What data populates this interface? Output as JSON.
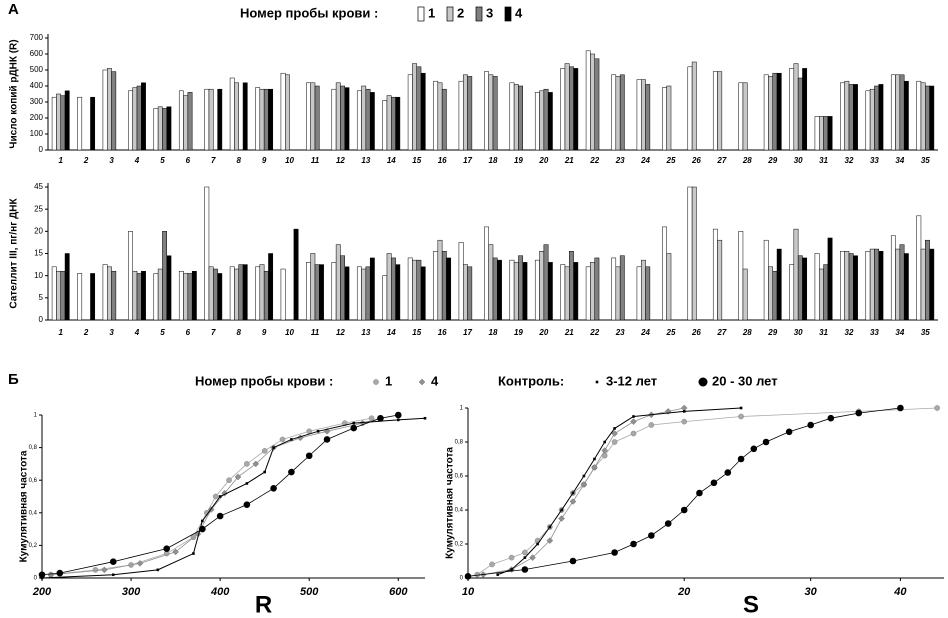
{
  "panels": [
    "А",
    "Б"
  ],
  "chart_data": [
    {
      "type": "bar",
      "legend_title": "Номер пробы крови :",
      "ylabel": "Число копий рДНК (R)",
      "categories": [
        "1",
        "2",
        "3",
        "4",
        "5",
        "6",
        "7",
        "8",
        "9",
        "10",
        "11",
        "12",
        "13",
        "14",
        "15",
        "16",
        "17",
        "18",
        "19",
        "20",
        "21",
        "22",
        "23",
        "24",
        "25",
        "26",
        "27",
        "28",
        "29",
        "30",
        "31",
        "32",
        "33",
        "34",
        "35"
      ],
      "ylim": [
        0,
        700
      ],
      "yticks": [
        0,
        100,
        200,
        300,
        400,
        500,
        600,
        700
      ],
      "series": [
        {
          "name": "1",
          "color": "#ffffff",
          "values": [
            330,
            330,
            500,
            370,
            260,
            370,
            380,
            450,
            390,
            480,
            420,
            380,
            370,
            310,
            470,
            430,
            430,
            490,
            420,
            360,
            510,
            620,
            470,
            440,
            390,
            520,
            490,
            420,
            470,
            510,
            210,
            420,
            370,
            470,
            430
          ]
        },
        {
          "name": "2",
          "color": "#c8c8c8",
          "values": [
            350,
            null,
            510,
            390,
            270,
            340,
            380,
            420,
            380,
            470,
            420,
            420,
            400,
            340,
            540,
            420,
            470,
            470,
            410,
            370,
            540,
            600,
            460,
            440,
            400,
            550,
            490,
            420,
            460,
            540,
            210,
            430,
            380,
            470,
            420
          ]
        },
        {
          "name": "3",
          "color": "#808080",
          "values": [
            340,
            null,
            490,
            400,
            260,
            360,
            null,
            null,
            380,
            null,
            400,
            400,
            380,
            330,
            520,
            380,
            460,
            460,
            400,
            380,
            520,
            570,
            470,
            410,
            null,
            null,
            null,
            null,
            480,
            450,
            210,
            410,
            400,
            470,
            400
          ]
        },
        {
          "name": "4",
          "color": "#000000",
          "values": [
            370,
            330,
            null,
            420,
            270,
            null,
            380,
            420,
            380,
            null,
            null,
            390,
            360,
            330,
            480,
            null,
            null,
            null,
            null,
            360,
            510,
            null,
            null,
            null,
            null,
            null,
            null,
            null,
            480,
            510,
            210,
            410,
            410,
            430,
            400
          ]
        }
      ]
    },
    {
      "type": "bar",
      "ylabel": "Сателлит III, пг/нг ДНК",
      "categories": [
        "1",
        "2",
        "3",
        "4",
        "5",
        "6",
        "7",
        "8",
        "9",
        "10",
        "11",
        "12",
        "13",
        "14",
        "15",
        "16",
        "17",
        "18",
        "19",
        "20",
        "21",
        "22",
        "23",
        "24",
        "25",
        "26",
        "27",
        "28",
        "29",
        "30",
        "31",
        "32",
        "33",
        "34",
        "35"
      ],
      "ylim": [
        0,
        45
      ],
      "yticks": [
        0,
        5,
        10,
        15,
        20,
        25,
        45
      ],
      "series": [
        {
          "color": "#ffffff",
          "values": [
            12,
            10.5,
            12.5,
            20,
            10.5,
            11,
            45,
            12,
            12,
            11.5,
            13,
            13,
            12,
            10,
            14,
            15.5,
            17.5,
            21,
            13.5,
            13.5,
            12.5,
            12,
            14,
            12,
            21,
            45,
            20.5,
            20,
            18,
            12.5,
            15,
            15.5,
            15.5,
            19,
            23.5
          ]
        },
        {
          "color": "#c8c8c8",
          "values": [
            11,
            null,
            12,
            11,
            11.5,
            10.5,
            12,
            11.5,
            12.5,
            null,
            15,
            17,
            11.5,
            15,
            13.5,
            18,
            12.5,
            17,
            13,
            15.5,
            12,
            13,
            12,
            13.5,
            15,
            45,
            18,
            11.5,
            12,
            20.5,
            11.5,
            15.5,
            16,
            16,
            16
          ]
        },
        {
          "color": "#808080",
          "values": [
            11,
            null,
            11,
            10.5,
            20,
            10.5,
            11.5,
            12.5,
            11,
            null,
            12.5,
            14.5,
            12,
            14,
            13.5,
            15.5,
            12,
            14,
            14.5,
            17,
            15.5,
            14,
            14.5,
            12,
            null,
            null,
            null,
            null,
            11,
            14.5,
            12.5,
            15,
            16,
            17,
            18
          ]
        },
        {
          "color": "#000000",
          "values": [
            15,
            10.5,
            null,
            11,
            14.5,
            11,
            10.5,
            12.5,
            15,
            20.5,
            12.5,
            12,
            14,
            12.5,
            12,
            14,
            null,
            13.5,
            13,
            13,
            13,
            null,
            null,
            null,
            null,
            null,
            null,
            null,
            16,
            14,
            18.5,
            14.5,
            15.5,
            15,
            16
          ]
        }
      ]
    },
    {
      "type": "line",
      "legend_title": "Номер пробы крови :",
      "legend_title2": "Контроль:",
      "xlabel": "R",
      "ylabel": "Кумулятивная частота",
      "xlim": [
        200,
        630
      ],
      "xticks": [
        200,
        300,
        400,
        500,
        600
      ],
      "ylim": [
        0,
        1
      ],
      "yticks": [
        0,
        {
          "value": 0.2,
          "label": "0,2"
        },
        {
          "value": 0.4,
          "label": "0,4"
        },
        {
          "value": 0.6,
          "label": "0,6"
        },
        {
          "value": 0.8,
          "label": "0,8"
        },
        1
      ],
      "series": [
        {
          "name": "1",
          "color": "#a8a8a8",
          "marker": "circle",
          "x": [
            210,
            260,
            300,
            340,
            370,
            385,
            395,
            410,
            430,
            450,
            470,
            500,
            540,
            570
          ],
          "values": [
            0.02,
            0.05,
            0.08,
            0.15,
            0.25,
            0.4,
            0.5,
            0.6,
            0.7,
            0.78,
            0.85,
            0.9,
            0.95,
            0.98
          ]
        },
        {
          "name": "4",
          "color": "#909090",
          "marker": "diamond",
          "x": [
            210,
            270,
            310,
            350,
            375,
            390,
            405,
            420,
            440,
            460,
            490,
            520,
            560,
            580
          ],
          "values": [
            0.02,
            0.05,
            0.09,
            0.16,
            0.27,
            0.42,
            0.52,
            0.62,
            0.7,
            0.8,
            0.86,
            0.9,
            0.95,
            0.98
          ]
        },
        {
          "name": "3-12 лет",
          "color": "#000000",
          "marker": "square",
          "x": [
            200,
            280,
            330,
            370,
            380,
            400,
            430,
            450,
            460,
            480,
            510,
            550,
            600,
            630
          ],
          "values": [
            0,
            0.02,
            0.05,
            0.15,
            0.35,
            0.5,
            0.58,
            0.65,
            0.8,
            0.85,
            0.9,
            0.95,
            0.97,
            0.98
          ]
        },
        {
          "name": "20 - 30 лет",
          "color": "#000000",
          "marker": "bigcircle",
          "x": [
            200,
            220,
            280,
            340,
            380,
            400,
            430,
            460,
            480,
            500,
            520,
            550,
            580,
            600
          ],
          "values": [
            0.02,
            0.03,
            0.1,
            0.18,
            0.3,
            0.38,
            0.45,
            0.55,
            0.65,
            0.75,
            0.85,
            0.92,
            0.98,
            1
          ]
        }
      ]
    },
    {
      "type": "line",
      "xlabel": "S",
      "ylabel": "Кумулятивная частота",
      "xscale": "log",
      "xlim": [
        10,
        46
      ],
      "xticks": [
        10,
        20,
        30,
        40
      ],
      "ylim": [
        0,
        1
      ],
      "yticks": [
        0,
        {
          "value": 0.2,
          "label": "0,2"
        },
        {
          "value": 0.4,
          "label": "0,4"
        },
        {
          "value": 0.6,
          "label": "0,6"
        },
        {
          "value": 0.8,
          "label": "0,8"
        },
        1
      ],
      "series": [
        {
          "color": "#a8a8a8",
          "marker": "circle",
          "x": [
            10.3,
            10.8,
            11.5,
            12,
            12.5,
            13,
            13.5,
            14,
            14.5,
            15,
            15.5,
            16,
            17,
            18,
            20,
            24,
            35,
            45
          ],
          "values": [
            0.02,
            0.08,
            0.12,
            0.15,
            0.22,
            0.3,
            0.4,
            0.5,
            0.55,
            0.65,
            0.72,
            0.8,
            0.85,
            0.9,
            0.92,
            0.95,
            0.98,
            1
          ]
        },
        {
          "color": "#909090",
          "marker": "diamond",
          "x": [
            10.5,
            11.5,
            12.3,
            13,
            13.5,
            14,
            14.5,
            15,
            15.5,
            16,
            17,
            18,
            19,
            20
          ],
          "values": [
            0.02,
            0.05,
            0.12,
            0.22,
            0.35,
            0.45,
            0.55,
            0.65,
            0.75,
            0.85,
            0.92,
            0.96,
            0.98,
            1
          ]
        },
        {
          "color": "#000000",
          "marker": "square",
          "x": [
            11,
            11.5,
            12,
            12.5,
            13,
            13.5,
            14,
            14.5,
            15,
            15.5,
            16,
            17,
            20,
            24
          ],
          "values": [
            0.02,
            0.05,
            0.12,
            0.2,
            0.3,
            0.4,
            0.5,
            0.6,
            0.7,
            0.8,
            0.88,
            0.95,
            0.98,
            1
          ]
        },
        {
          "color": "#000000",
          "marker": "bigcircle",
          "x": [
            10,
            12,
            14,
            16,
            17,
            18,
            19,
            20,
            21,
            22,
            23,
            24,
            25,
            26,
            28,
            30,
            32,
            35,
            40
          ],
          "values": [
            0.01,
            0.05,
            0.1,
            0.15,
            0.2,
            0.25,
            0.32,
            0.4,
            0.5,
            0.56,
            0.62,
            0.7,
            0.76,
            0.8,
            0.86,
            0.9,
            0.94,
            0.97,
            1
          ]
        }
      ]
    }
  ]
}
